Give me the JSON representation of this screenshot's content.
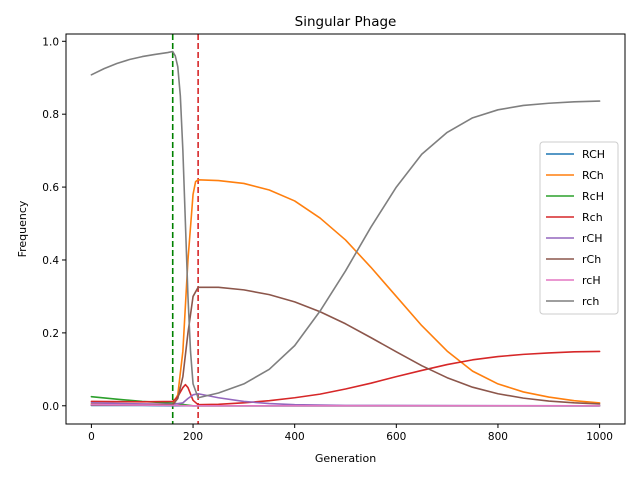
{
  "chart_data": {
    "type": "line",
    "title": "Singular Phage",
    "xlabel": "Generation",
    "ylabel": "Frequency",
    "xlim": [
      -50,
      1050
    ],
    "ylim": [
      -0.05,
      1.02
    ],
    "xticks": [
      0,
      200,
      400,
      600,
      800,
      1000
    ],
    "yticks": [
      0.0,
      0.2,
      0.4,
      0.6,
      0.8,
      1.0
    ],
    "grid": false,
    "legend_position": "right",
    "vlines": [
      {
        "x": 160,
        "color": "#008000",
        "style": "dashed"
      },
      {
        "x": 210,
        "color": "#d62728",
        "style": "dashed"
      }
    ],
    "series": [
      {
        "name": "RCH",
        "color": "#1f77b4",
        "x": [
          0,
          100,
          160,
          200,
          300,
          1000
        ],
        "y": [
          0.001,
          0.001,
          0.0,
          0.0,
          0.0,
          0.0
        ]
      },
      {
        "name": "RCh",
        "color": "#ff7f0e",
        "x": [
          0,
          100,
          160,
          170,
          180,
          190,
          200,
          205,
          210,
          250,
          300,
          350,
          400,
          450,
          500,
          550,
          600,
          650,
          700,
          750,
          800,
          850,
          900,
          950,
          1000
        ],
        "y": [
          0.005,
          0.004,
          0.005,
          0.03,
          0.15,
          0.4,
          0.58,
          0.615,
          0.62,
          0.618,
          0.61,
          0.592,
          0.562,
          0.515,
          0.455,
          0.38,
          0.3,
          0.22,
          0.15,
          0.095,
          0.06,
          0.038,
          0.024,
          0.014,
          0.008
        ]
      },
      {
        "name": "RcH",
        "color": "#2ca02c",
        "x": [
          0,
          50,
          100,
          150,
          160,
          200,
          300,
          1000
        ],
        "y": [
          0.025,
          0.018,
          0.012,
          0.008,
          0.007,
          0.0,
          0.0,
          0.0
        ]
      },
      {
        "name": "Rch",
        "color": "#d62728",
        "x": [
          0,
          100,
          160,
          170,
          180,
          185,
          190,
          200,
          210,
          250,
          300,
          350,
          400,
          450,
          500,
          550,
          600,
          650,
          700,
          750,
          800,
          850,
          900,
          950,
          1000
        ],
        "y": [
          0.012,
          0.011,
          0.012,
          0.025,
          0.05,
          0.058,
          0.05,
          0.015,
          0.003,
          0.004,
          0.008,
          0.014,
          0.022,
          0.032,
          0.046,
          0.062,
          0.08,
          0.097,
          0.113,
          0.126,
          0.135,
          0.141,
          0.145,
          0.148,
          0.149
        ]
      },
      {
        "name": "rCH",
        "color": "#9467bd",
        "x": [
          0,
          100,
          160,
          180,
          190,
          200,
          210,
          250,
          300,
          350,
          400,
          500,
          1000
        ],
        "y": [
          0.008,
          0.005,
          0.004,
          0.008,
          0.02,
          0.03,
          0.033,
          0.022,
          0.012,
          0.006,
          0.003,
          0.001,
          0.0
        ]
      },
      {
        "name": "rCh",
        "color": "#8c564b",
        "x": [
          0,
          100,
          160,
          170,
          180,
          190,
          200,
          210,
          250,
          300,
          350,
          400,
          450,
          500,
          550,
          600,
          650,
          700,
          750,
          800,
          850,
          900,
          950,
          1000
        ],
        "y": [
          0.002,
          0.002,
          0.003,
          0.02,
          0.08,
          0.2,
          0.3,
          0.325,
          0.325,
          0.318,
          0.305,
          0.285,
          0.258,
          0.225,
          0.187,
          0.148,
          0.11,
          0.077,
          0.051,
          0.033,
          0.021,
          0.013,
          0.008,
          0.005
        ]
      },
      {
        "name": "rcH",
        "color": "#e377c2",
        "x": [
          0,
          100,
          160,
          200,
          300,
          1000
        ],
        "y": [
          0.003,
          0.002,
          0.001,
          0.0,
          0.0,
          0.0
        ]
      },
      {
        "name": "rch",
        "color": "#7f7f7f",
        "x": [
          0,
          25,
          50,
          75,
          100,
          125,
          150,
          160,
          165,
          170,
          175,
          180,
          185,
          190,
          195,
          200,
          210,
          250,
          300,
          350,
          400,
          450,
          500,
          550,
          600,
          650,
          700,
          750,
          800,
          850,
          900,
          950,
          1000
        ],
        "y": [
          0.908,
          0.925,
          0.939,
          0.95,
          0.958,
          0.964,
          0.969,
          0.972,
          0.96,
          0.93,
          0.85,
          0.7,
          0.5,
          0.3,
          0.15,
          0.06,
          0.022,
          0.035,
          0.06,
          0.1,
          0.165,
          0.26,
          0.37,
          0.49,
          0.6,
          0.69,
          0.75,
          0.79,
          0.812,
          0.824,
          0.83,
          0.834,
          0.836
        ]
      }
    ]
  }
}
